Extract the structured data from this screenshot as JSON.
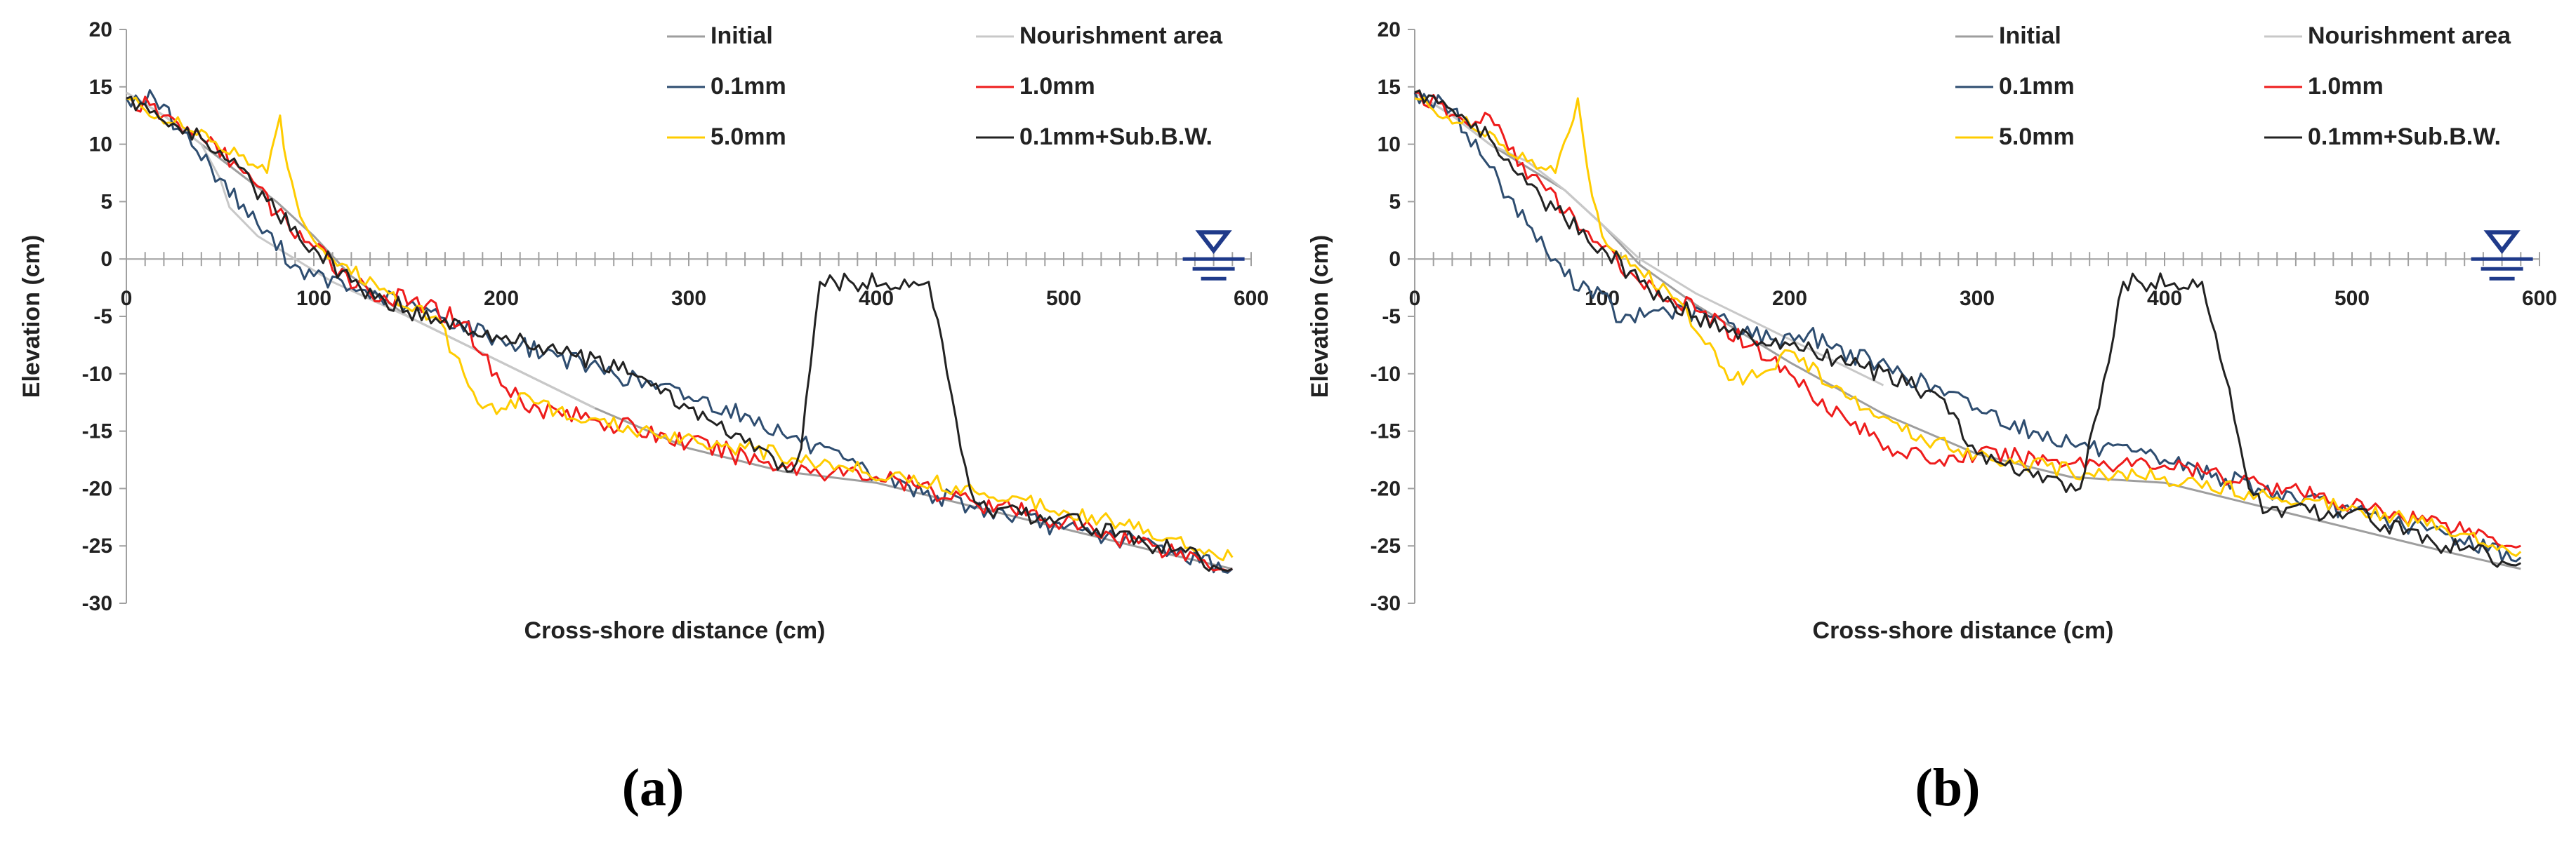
{
  "chart_data": [
    {
      "type": "line",
      "panel_label": "(a)",
      "xlabel": "Cross-shore distance (cm)",
      "ylabel": "Elevation (cm)",
      "xlim": [
        0,
        600
      ],
      "ylim": [
        -30,
        20
      ],
      "xticks": [
        0,
        100,
        200,
        300,
        400,
        500,
        600
      ],
      "yticks": [
        20,
        15,
        10,
        5,
        0,
        -5,
        -10,
        -15,
        -20,
        -25,
        -30
      ],
      "water_level_symbol": {
        "x": 580,
        "y": 0
      },
      "legend": [
        "Initial",
        "Nourishment area",
        "0.1mm",
        "1.0mm",
        "5.0mm",
        "0.1mm+Sub.B.W."
      ],
      "series": [
        {
          "name": "Initial",
          "color": "#9e9e9e",
          "points": [
            [
              0,
              14.5
            ],
            [
              20,
              12.5
            ],
            [
              40,
              10
            ],
            [
              60,
              7.5
            ],
            [
              80,
              5
            ],
            [
              100,
              2
            ],
            [
              120,
              -1.5
            ],
            [
              150,
              -5
            ],
            [
              200,
              -9
            ],
            [
              250,
              -13
            ],
            [
              300,
              -16.5
            ],
            [
              350,
              -18.5
            ],
            [
              400,
              -19.5
            ],
            [
              450,
              -21.5
            ],
            [
              500,
              -23.5
            ],
            [
              550,
              -25.5
            ],
            [
              590,
              -27
            ]
          ]
        },
        {
          "name": "Nourishment area",
          "color": "#c8c8c8",
          "points": [
            [
              0,
              14.5
            ],
            [
              20,
              12.5
            ],
            [
              40,
              10
            ],
            [
              50,
              7
            ],
            [
              55,
              4.5
            ],
            [
              70,
              2
            ],
            [
              90,
              0
            ],
            [
              110,
              -2
            ],
            [
              150,
              -5
            ],
            [
              200,
              -9
            ],
            [
              250,
              -13
            ]
          ]
        },
        {
          "name": "0.1mm",
          "color": "#2e4d70",
          "wiggle": 0.8,
          "points": [
            [
              0,
              14
            ],
            [
              15,
              14
            ],
            [
              30,
              11
            ],
            [
              50,
              7
            ],
            [
              70,
              3
            ],
            [
              90,
              -0.5
            ],
            [
              100,
              -1.5
            ],
            [
              120,
              -2.5
            ],
            [
              150,
              -4
            ],
            [
              200,
              -7
            ],
            [
              230,
              -8.5
            ],
            [
              260,
              -10
            ],
            [
              300,
              -12
            ],
            [
              330,
              -13.5
            ],
            [
              360,
              -16
            ],
            [
              400,
              -19
            ],
            [
              450,
              -21.5
            ],
            [
              500,
              -23.5
            ],
            [
              550,
              -25
            ],
            [
              590,
              -27
            ]
          ]
        },
        {
          "name": "1.0mm",
          "color": "#ee1c1c",
          "wiggle": 0.9,
          "points": [
            [
              0,
              14
            ],
            [
              20,
              12.5
            ],
            [
              40,
              10.5
            ],
            [
              60,
              8
            ],
            [
              80,
              4
            ],
            [
              100,
              1
            ],
            [
              130,
              -3
            ],
            [
              160,
              -4
            ],
            [
              180,
              -5.5
            ],
            [
              200,
              -11
            ],
            [
              220,
              -13
            ],
            [
              250,
              -14
            ],
            [
              300,
              -16
            ],
            [
              350,
              -18
            ],
            [
              400,
              -19
            ],
            [
              450,
              -21
            ],
            [
              500,
              -23
            ],
            [
              550,
              -25
            ],
            [
              590,
              -27
            ]
          ]
        },
        {
          "name": "5.0mm",
          "color": "#ffcc00",
          "wiggle": 0.7,
          "points": [
            [
              0,
              14
            ],
            [
              30,
              11.5
            ],
            [
              60,
              9
            ],
            [
              75,
              7.5
            ],
            [
              82,
              12.5
            ],
            [
              86,
              8
            ],
            [
              95,
              3
            ],
            [
              110,
              0
            ],
            [
              140,
              -3
            ],
            [
              165,
              -5
            ],
            [
              180,
              -10
            ],
            [
              190,
              -13
            ],
            [
              200,
              -13
            ],
            [
              215,
              -12
            ],
            [
              240,
              -14
            ],
            [
              280,
              -15
            ],
            [
              330,
              -16.5
            ],
            [
              380,
              -18
            ],
            [
              430,
              -19.5
            ],
            [
              480,
              -21
            ],
            [
              530,
              -23
            ],
            [
              590,
              -26
            ]
          ]
        },
        {
          "name": "0.1mm+Sub.B.W.",
          "color": "#222222",
          "wiggle": 0.8,
          "points": [
            [
              0,
              14
            ],
            [
              20,
              12
            ],
            [
              40,
              10.5
            ],
            [
              60,
              8
            ],
            [
              80,
              4
            ],
            [
              100,
              1
            ],
            [
              120,
              -2
            ],
            [
              150,
              -4.5
            ],
            [
              180,
              -6
            ],
            [
              200,
              -7
            ],
            [
              220,
              -7.5
            ],
            [
              240,
              -8.5
            ],
            [
              270,
              -10
            ],
            [
              300,
              -13
            ],
            [
              330,
              -16
            ],
            [
              355,
              -18.5
            ],
            [
              360,
              -16.5
            ],
            [
              370,
              -2
            ],
            [
              378,
              -2
            ],
            [
              420,
              -2
            ],
            [
              428,
              -2
            ],
            [
              450,
              -20
            ],
            [
              460,
              -22
            ],
            [
              500,
              -22.5
            ],
            [
              550,
              -25
            ],
            [
              590,
              -27
            ]
          ]
        }
      ]
    },
    {
      "type": "line",
      "panel_label": "(b)",
      "xlabel": "Cross-shore distance (cm)",
      "ylabel": "Elevation (cm)",
      "xlim": [
        0,
        600
      ],
      "ylim": [
        -30,
        20
      ],
      "xticks": [
        0,
        100,
        200,
        300,
        400,
        500,
        600
      ],
      "yticks": [
        20,
        15,
        10,
        5,
        0,
        -5,
        -10,
        -15,
        -20,
        -25,
        -30
      ],
      "water_level_symbol": {
        "x": 580,
        "y": 0
      },
      "legend": [
        "Initial",
        "Nourishment area",
        "0.1mm",
        "1.0mm",
        "5.0mm",
        "0.1mm+Sub.B.W."
      ],
      "series": [
        {
          "name": "Initial",
          "color": "#9e9e9e",
          "points": [
            [
              0,
              14.5
            ],
            [
              20,
              12.5
            ],
            [
              40,
              10
            ],
            [
              60,
              8
            ],
            [
              80,
              6
            ],
            [
              100,
              3
            ],
            [
              120,
              -0.5
            ],
            [
              150,
              -4
            ],
            [
              200,
              -9
            ],
            [
              250,
              -13.5
            ],
            [
              300,
              -17
            ],
            [
              350,
              -19
            ],
            [
              400,
              -19.5
            ],
            [
              450,
              -21.5
            ],
            [
              500,
              -23.5
            ],
            [
              550,
              -25.5
            ],
            [
              590,
              -27
            ]
          ]
        },
        {
          "name": "Nourishment area",
          "color": "#c8c8c8",
          "points": [
            [
              0,
              14.5
            ],
            [
              20,
              12.5
            ],
            [
              40,
              10
            ],
            [
              60,
              8.5
            ],
            [
              80,
              6
            ],
            [
              100,
              3
            ],
            [
              120,
              0
            ],
            [
              150,
              -3
            ],
            [
              200,
              -7
            ],
            [
              250,
              -11
            ]
          ]
        },
        {
          "name": "0.1mm",
          "color": "#2e4d70",
          "wiggle": 0.8,
          "points": [
            [
              0,
              14.5
            ],
            [
              20,
              13
            ],
            [
              40,
              8
            ],
            [
              60,
              3
            ],
            [
              80,
              -1.5
            ],
            [
              100,
              -3
            ],
            [
              110,
              -5.5
            ],
            [
              130,
              -4.5
            ],
            [
              160,
              -5
            ],
            [
              190,
              -7
            ],
            [
              210,
              -6.5
            ],
            [
              220,
              -7.5
            ],
            [
              260,
              -10
            ],
            [
              300,
              -13
            ],
            [
              330,
              -15
            ],
            [
              360,
              -16.5
            ],
            [
              400,
              -17.5
            ],
            [
              450,
              -20
            ],
            [
              500,
              -22
            ],
            [
              550,
              -24
            ],
            [
              590,
              -26
            ]
          ]
        },
        {
          "name": "1.0mm",
          "color": "#ee1c1c",
          "wiggle": 0.8,
          "points": [
            [
              0,
              14.5
            ],
            [
              30,
              11.5
            ],
            [
              40,
              12.5
            ],
            [
              50,
              9.5
            ],
            [
              70,
              6
            ],
            [
              90,
              2.5
            ],
            [
              100,
              1
            ],
            [
              120,
              -2
            ],
            [
              150,
              -4.5
            ],
            [
              180,
              -7.5
            ],
            [
              200,
              -10
            ],
            [
              230,
              -14
            ],
            [
              260,
              -17
            ],
            [
              280,
              -17.5
            ],
            [
              300,
              -17
            ],
            [
              340,
              -17.5
            ],
            [
              400,
              -18
            ],
            [
              450,
              -19.5
            ],
            [
              500,
              -21.5
            ],
            [
              550,
              -23
            ],
            [
              590,
              -25
            ]
          ]
        },
        {
          "name": "5.0mm",
          "color": "#ffcc00",
          "wiggle": 0.7,
          "points": [
            [
              0,
              14
            ],
            [
              30,
              11.5
            ],
            [
              60,
              8.5
            ],
            [
              75,
              7.5
            ],
            [
              87,
              14
            ],
            [
              92,
              8
            ],
            [
              100,
              2
            ],
            [
              120,
              -1
            ],
            [
              140,
              -3.5
            ],
            [
              160,
              -8
            ],
            [
              170,
              -10.5
            ],
            [
              185,
              -10
            ],
            [
              200,
              -8
            ],
            [
              230,
              -12
            ],
            [
              260,
              -15
            ],
            [
              300,
              -17
            ],
            [
              350,
              -18.5
            ],
            [
              400,
              -19
            ],
            [
              450,
              -20.5
            ],
            [
              500,
              -21.5
            ],
            [
              550,
              -23.5
            ],
            [
              590,
              -25.5
            ]
          ]
        },
        {
          "name": "0.1mm+Sub.B.W.",
          "color": "#222222",
          "wiggle": 0.8,
          "points": [
            [
              0,
              14.5
            ],
            [
              20,
              13
            ],
            [
              40,
              10.5
            ],
            [
              60,
              6.5
            ],
            [
              80,
              3.5
            ],
            [
              100,
              1
            ],
            [
              120,
              -2
            ],
            [
              150,
              -5
            ],
            [
              180,
              -7
            ],
            [
              200,
              -7.5
            ],
            [
              240,
              -9.5
            ],
            [
              280,
              -12
            ],
            [
              300,
              -17
            ],
            [
              330,
              -19
            ],
            [
              355,
              -20
            ],
            [
              365,
              -13
            ],
            [
              378,
              -2
            ],
            [
              420,
              -2
            ],
            [
              432,
              -10
            ],
            [
              445,
              -20
            ],
            [
              455,
              -22
            ],
            [
              500,
              -22
            ],
            [
              550,
              -25
            ],
            [
              590,
              -26.5
            ]
          ]
        }
      ]
    }
  ]
}
